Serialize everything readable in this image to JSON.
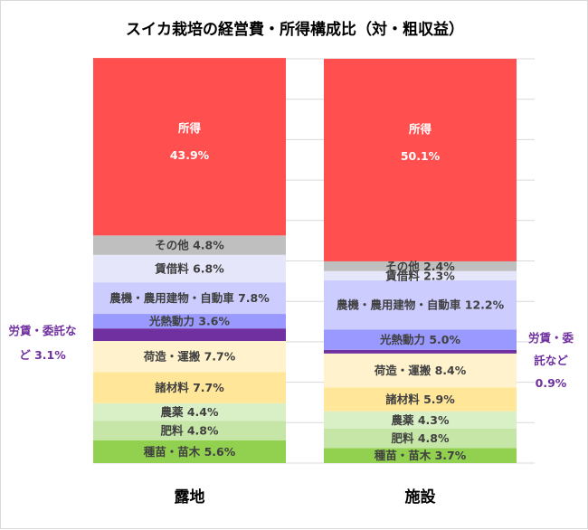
{
  "chart_data": {
    "type": "bar",
    "stacked": true,
    "title": "スイカ栽培の経営費・所得構成比（対・粗収益）",
    "categories": [
      "露地",
      "施設"
    ],
    "series": [
      {
        "name": "種苗・苗木",
        "values": [
          5.6,
          3.7
        ],
        "color": "#92d050"
      },
      {
        "name": "肥料",
        "values": [
          4.8,
          4.8
        ],
        "color": "#c5e6a6"
      },
      {
        "name": "農薬",
        "values": [
          4.4,
          4.3
        ],
        "color": "#d9efc6"
      },
      {
        "name": "諸材料",
        "values": [
          7.7,
          5.9
        ],
        "color": "#ffe699"
      },
      {
        "name": "荷造・運搬",
        "values": [
          7.7,
          8.4
        ],
        "color": "#fff2cc"
      },
      {
        "name": "労賃・委託など",
        "values": [
          3.1,
          0.9
        ],
        "color": "#7030a0"
      },
      {
        "name": "光熱動力",
        "values": [
          3.6,
          5.0
        ],
        "color": "#9999ff"
      },
      {
        "name": "農機・農用建物・自動車",
        "values": [
          7.8,
          12.2
        ],
        "color": "#ccccff"
      },
      {
        "name": "賃借料",
        "values": [
          6.8,
          2.3
        ],
        "color": "#e6e6fa"
      },
      {
        "name": "その他",
        "values": [
          4.8,
          2.4
        ],
        "color": "#bfbfbf"
      },
      {
        "name": "所得",
        "values": [
          43.9,
          50.1
        ],
        "color": "#ff4f4f"
      }
    ],
    "segment_labels": [
      [
        "種苗・苗木 5.6%",
        "肥料 4.8%",
        "農薬 4.4%",
        "諸材料 7.7%",
        "荷造・運搬 7.7%",
        "",
        "光熱動力 3.6%",
        "農機・農用建物・自動車 7.8%",
        "賃借料 6.8%",
        "その他 4.8%",
        "所得|43.9%"
      ],
      [
        "種苗・苗木 3.7%",
        "肥料 4.8%",
        "農薬 4.3%",
        "諸材料 5.9%",
        "荷造・運搬 8.4%",
        "",
        "光熱動力 5.0%",
        "農機・農用建物・自動車 12.2%",
        "賃借料 2.3%",
        "その他 2.4%",
        "所得|50.1%"
      ]
    ],
    "side_labels": [
      {
        "lines": [
          "労賃・委託な",
          "ど 3.1%"
        ],
        "category": "露地",
        "side": "left"
      },
      {
        "lines": [
          "労賃・委",
          "託など",
          "0.9%"
        ],
        "category": "施設",
        "side": "right"
      }
    ],
    "ylim": [
      0,
      100
    ],
    "grid": true,
    "legend": "none",
    "label_color_dark": "#404040",
    "label_color_light": "#ffffff"
  }
}
